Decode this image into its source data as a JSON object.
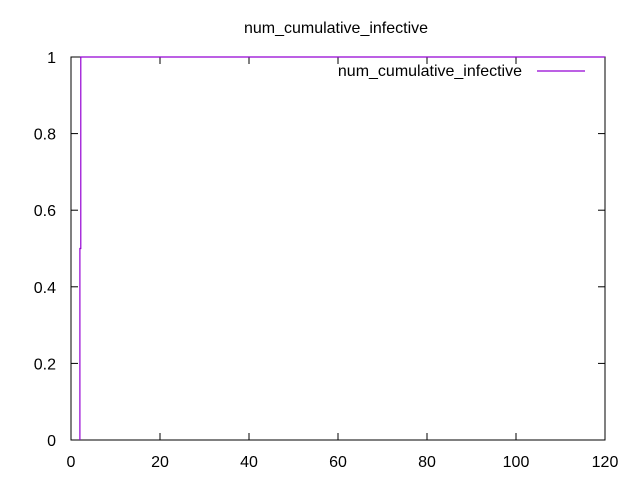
{
  "chart_data": {
    "type": "line",
    "title": "num_cumulative_infective",
    "xlabel": "",
    "ylabel": "",
    "xlim": [
      0,
      120
    ],
    "ylim": [
      0,
      1
    ],
    "x_ticks": [
      "0",
      "20",
      "40",
      "60",
      "80",
      "100",
      "120"
    ],
    "y_ticks": [
      "0",
      "0.2",
      "0.4",
      "0.6",
      "0.8",
      "1"
    ],
    "x_tick_values": [
      0,
      20,
      40,
      60,
      80,
      100,
      120
    ],
    "y_tick_values": [
      0,
      0.2,
      0.4,
      0.6,
      0.8,
      1
    ],
    "grid": false,
    "legend_position": "top-right",
    "series": [
      {
        "name": "num_cumulative_infective",
        "color": "#9400d3",
        "x": [
          2,
          2,
          2.2,
          2.2,
          120
        ],
        "y": [
          0,
          0.5,
          0.5,
          1,
          1
        ]
      }
    ]
  }
}
